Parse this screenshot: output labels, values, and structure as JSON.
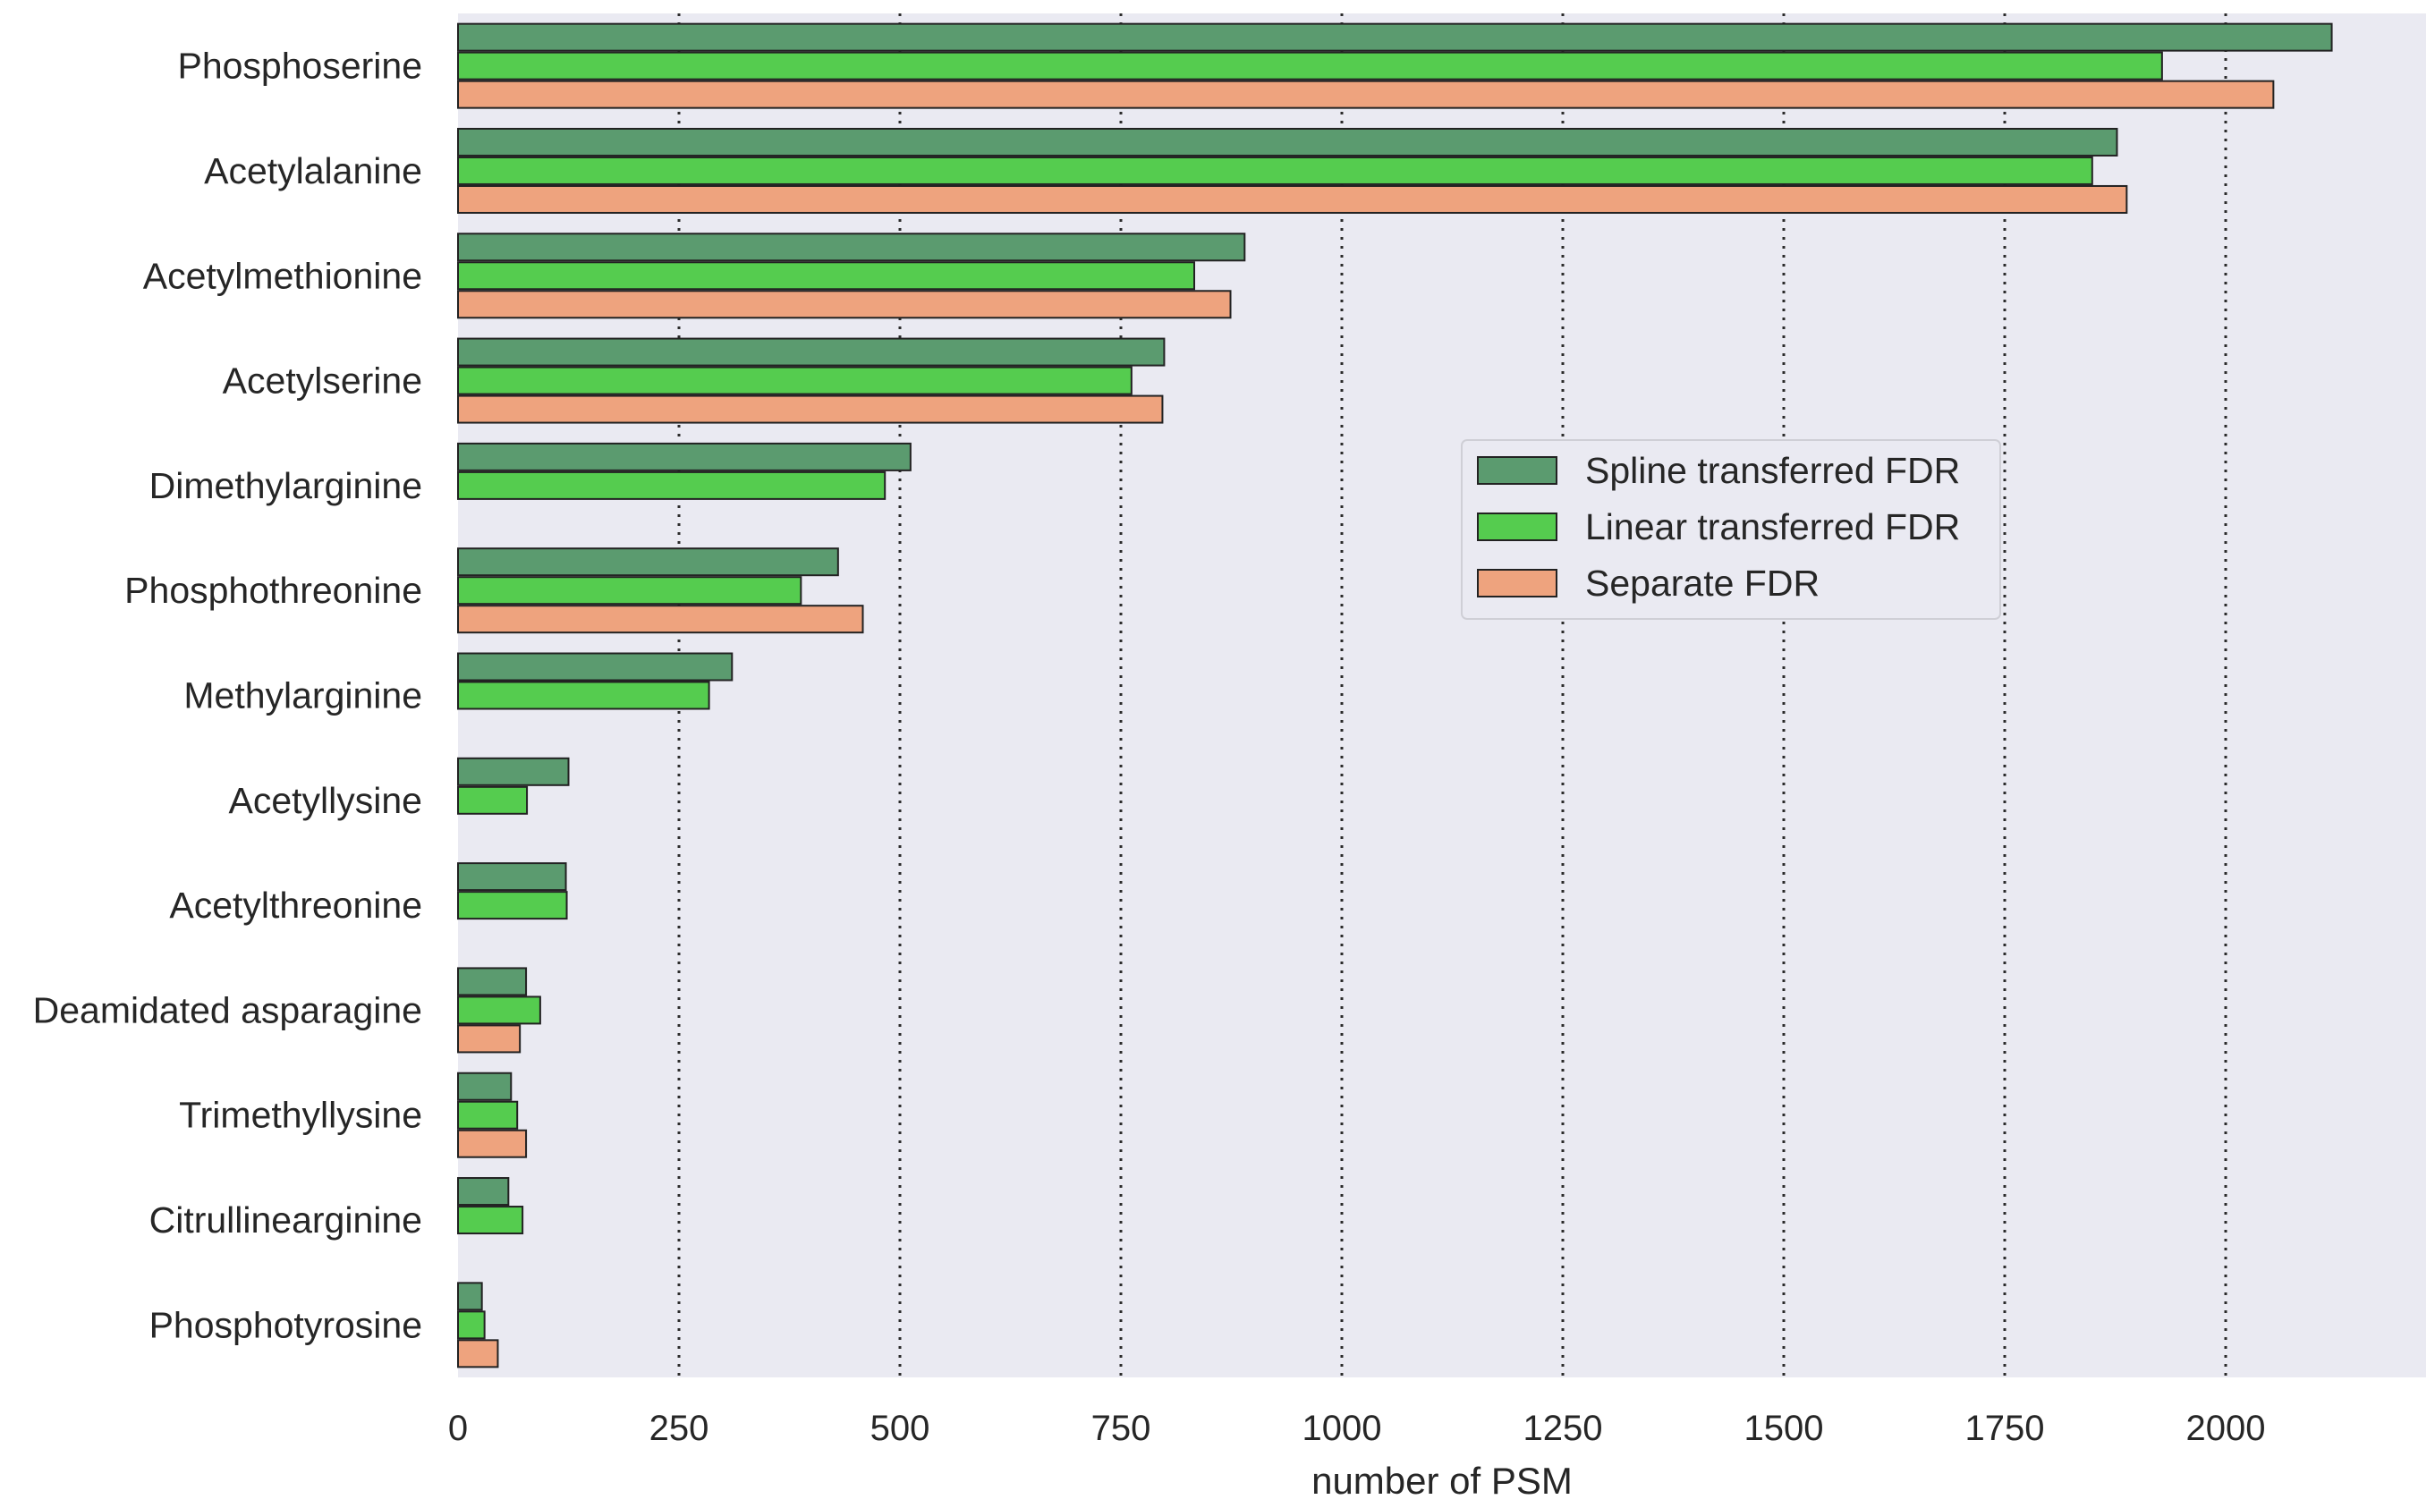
{
  "chart_data": {
    "type": "bar",
    "orientation": "horizontal",
    "title": "",
    "xlabel": "number of PSM",
    "ylabel": "",
    "xlim": [
      0,
      2230
    ],
    "xticks": [
      0,
      250,
      500,
      750,
      1000,
      1250,
      1500,
      1750,
      2000
    ],
    "xtick_labels": [
      "0",
      "250",
      "500",
      "750",
      "1000",
      "1250",
      "1500",
      "1750",
      "2000"
    ],
    "grid": "vertical dotted",
    "legend_position": "center-right",
    "categories": [
      "Phosphoserine",
      "Acetylalanine",
      "Acetylmethionine",
      "Acetylserine",
      "Dimethylarginine",
      "Phosphothreonine",
      "Methylarginine",
      "Acetyllysine",
      "Acetylthreonine",
      "Deamidated asparagine",
      "Trimethyllysine",
      "Citrullinearginine",
      "Phosphotyrosine"
    ],
    "series": [
      {
        "name": "Spline transferred FDR",
        "color": "#5b9b6f",
        "values": [
          2120,
          1877,
          890,
          799,
          512,
          430,
          310,
          125,
          122,
          77,
          60,
          57,
          27
        ]
      },
      {
        "name": "Linear transferred FDR",
        "color": "#55cc4f",
        "values": [
          1928,
          1849,
          833,
          762,
          483,
          388,
          284,
          78,
          123,
          93,
          67,
          73,
          30
        ]
      },
      {
        "name": "Separate FDR",
        "color": "#eea37e",
        "values": [
          2054,
          1888,
          874,
          797,
          null,
          458,
          null,
          null,
          null,
          70,
          77,
          null,
          45
        ]
      }
    ]
  }
}
